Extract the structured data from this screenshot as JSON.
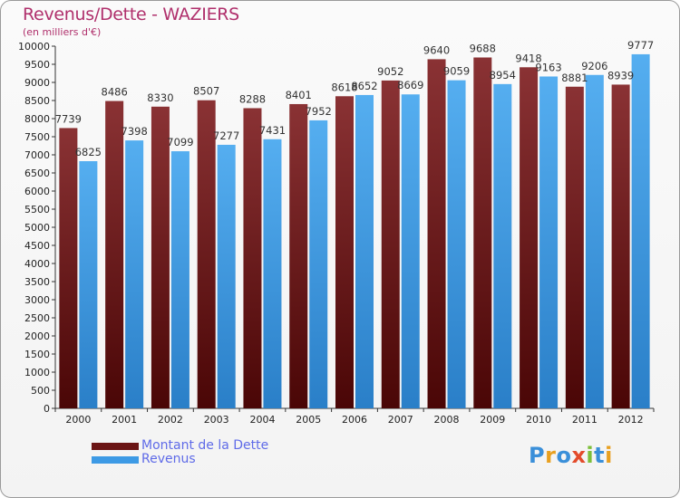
{
  "header": {
    "title": "Revenus/Dette - WAZIERS",
    "subtitle": "(en milliers d'€)"
  },
  "colors": {
    "dette": "#7a1f22",
    "revenus": "#3d9ae5"
  },
  "legend": {
    "items": [
      {
        "label": "Montant de la Dette",
        "color": "#6b1515"
      },
      {
        "label": "Revenus",
        "color": "#3d9ae5"
      }
    ]
  },
  "logo": {
    "text": "Proxiti"
  },
  "chart_data": {
    "type": "bar",
    "categories": [
      "2000",
      "2001",
      "2002",
      "2003",
      "2004",
      "2005",
      "2006",
      "2007",
      "2008",
      "2009",
      "2010",
      "2011",
      "2012"
    ],
    "series": [
      {
        "name": "Montant de la Dette",
        "values": [
          7739,
          8486,
          8330,
          8507,
          8288,
          8401,
          8618,
          9052,
          9640,
          9688,
          9418,
          8881,
          8939
        ]
      },
      {
        "name": "Revenus",
        "values": [
          6825,
          7398,
          7099,
          7277,
          7431,
          7952,
          8652,
          8669,
          9059,
          8954,
          9163,
          9206,
          9777
        ]
      }
    ],
    "ylim": [
      0,
      10000
    ],
    "ytick_step": 500,
    "grid": false,
    "legend_position": "bottom-left"
  }
}
